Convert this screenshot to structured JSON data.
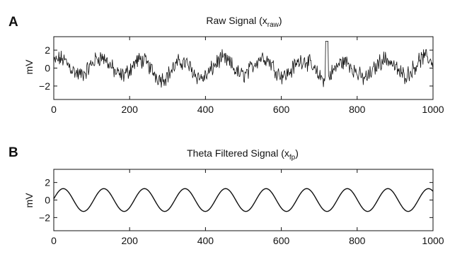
{
  "chart_data": [
    {
      "type": "line",
      "panel_label": "A",
      "title": "Raw Signal (x",
      "title_subscript": "raw",
      "title_suffix": ")",
      "xlabel": "",
      "ylabel": "mV",
      "xlim": [
        0,
        1000
      ],
      "ylim": [
        -3.5,
        3.5
      ],
      "xticks": [
        0,
        200,
        400,
        600,
        800,
        1000
      ],
      "yticks": [
        2,
        0,
        -2
      ],
      "ytick_labels": [
        "2",
        "0",
        "−2"
      ],
      "grid": false,
      "series": [
        {
          "x": [
            0,
            50,
            100,
            150,
            200,
            250,
            300,
            350,
            400,
            450,
            500,
            550,
            600,
            650,
            700,
            750,
            800,
            850,
            900,
            950,
            1000
          ],
          "y": [
            0.4,
            1.0,
            -1.2,
            0.8,
            0.6,
            1.4,
            -0.9,
            0.2,
            0.7,
            1.3,
            -1.0,
            0.6,
            0.9,
            1.1,
            -0.8,
            1.6,
            1.0,
            -0.7,
            0.5,
            1.4,
            -0.5
          ],
          "description": "noisy oscillation, roughly 9 cycles, peak near 3 at x≈720"
        }
      ]
    },
    {
      "type": "line",
      "panel_label": "B",
      "title": "Theta Filtered Signal (x",
      "title_subscript": "fp",
      "title_suffix": ")",
      "xlabel": "",
      "ylabel": "mV",
      "xlim": [
        0,
        1000
      ],
      "ylim": [
        -3.5,
        3.5
      ],
      "xticks": [
        0,
        200,
        400,
        600,
        800,
        1000
      ],
      "yticks": [
        2,
        0,
        -2
      ],
      "ytick_labels": [
        "2",
        "0",
        "−2"
      ],
      "grid": false,
      "series": [
        {
          "amplitude": 1.3,
          "period": 107,
          "first_peak_x": 25,
          "description": "smooth sinusoid"
        }
      ]
    }
  ]
}
